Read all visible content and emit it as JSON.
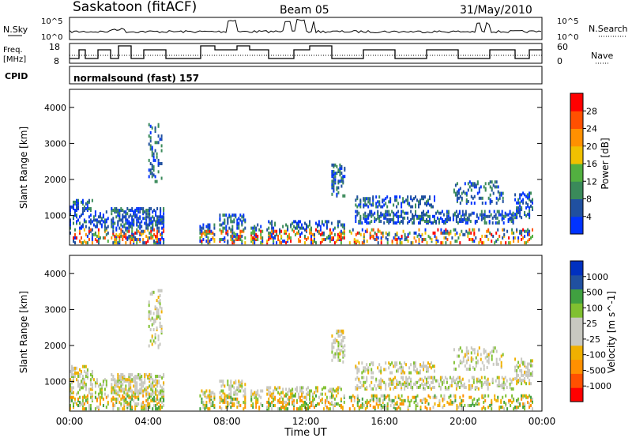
{
  "header": {
    "station": "Saskatoon (fitACF)",
    "beam": "Beam 05",
    "date": "31/May/2010"
  },
  "noise_panel": {
    "left_label": "N.Sky",
    "right_label": "N.Search",
    "left_ticks": [
      "10^5",
      "10^0"
    ],
    "right_ticks": [
      "10^5",
      "10^0"
    ]
  },
  "freq_panel": {
    "left_label_1": "Freq.",
    "left_label_2": "[MHz]",
    "left_ticks": [
      "18",
      "8"
    ],
    "right_label": "Nave",
    "right_ticks": [
      "60",
      "0"
    ]
  },
  "cpid": {
    "label": "CPID",
    "text": "normalsound (fast) 157"
  },
  "colors": {
    "power": [
      "#0033ff",
      "#2050a0",
      "#3a8a5a",
      "#52b040",
      "#f0c000",
      "#ff9000",
      "#ff5000",
      "#ff0000"
    ],
    "velocity": [
      "#ff0000",
      "#ff5000",
      "#ff9000",
      "#f0b000",
      "#c8c8c0",
      "#c8c8c0",
      "#80c030",
      "#40a040",
      "#2050a0",
      "#0030c0"
    ]
  },
  "chart_data": [
    {
      "type": "heatmap",
      "name": "power",
      "ylabel": "Slant Range [km]",
      "ylim": [
        180,
        4500
      ],
      "yticks": [
        1000,
        2000,
        3000,
        4000
      ],
      "colorbar": {
        "label": "Power [dB]",
        "ticks": [
          "4",
          "8",
          "12",
          "16",
          "20",
          "24",
          "28"
        ]
      }
    },
    {
      "type": "heatmap",
      "name": "velocity",
      "ylabel": "Slant Range [km]",
      "xlabel": "Time UT",
      "ylim": [
        180,
        4500
      ],
      "yticks": [
        1000,
        2000,
        3000,
        4000
      ],
      "xticks": [
        "00:00",
        "04:00",
        "08:00",
        "12:00",
        "16:00",
        "20:00",
        "00:00"
      ],
      "colorbar": {
        "label": "Velocity [m s^-1]",
        "ticks": [
          "1000",
          "500",
          "100",
          "25",
          "-25",
          "-100",
          "-500",
          "-1000"
        ]
      }
    }
  ]
}
